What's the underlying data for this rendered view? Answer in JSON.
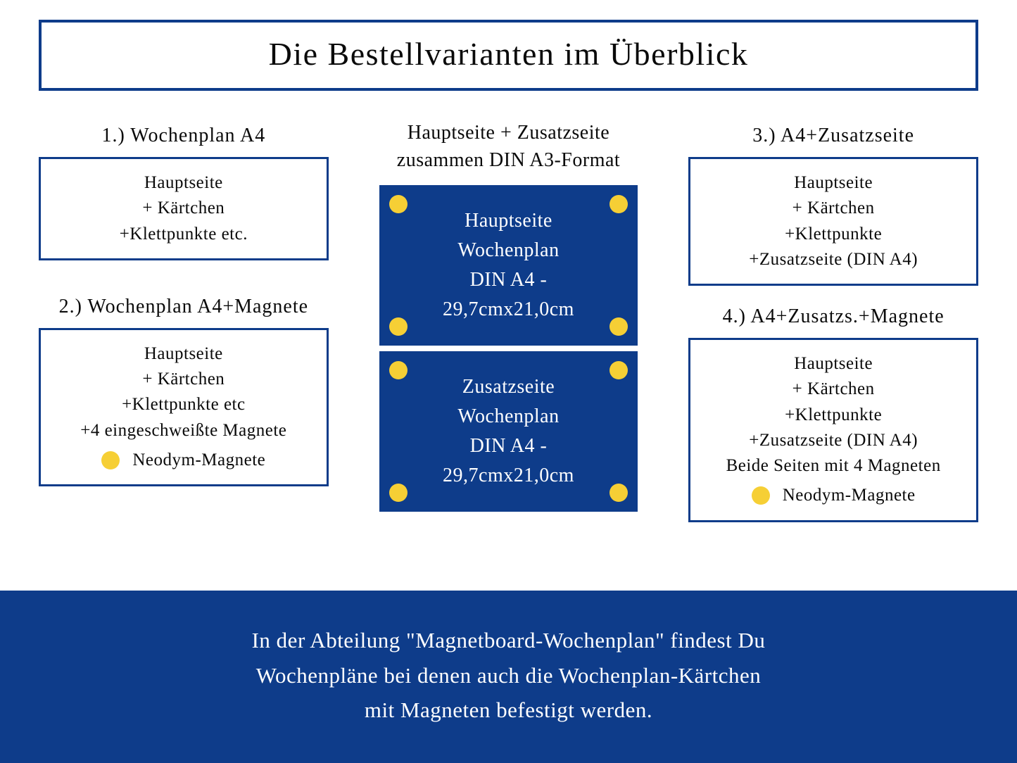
{
  "colors": {
    "primary": "#0e3c8a",
    "accent": "#f6cf35",
    "background": "#ffffff",
    "text": "#0a0a0a"
  },
  "title": "Die Bestellvarianten im Überblick",
  "left": {
    "option1": {
      "title": "1.) Wochenplan A4",
      "lines": [
        "Hauptseite",
        "+ Kärtchen",
        "+Klettpunkte etc."
      ]
    },
    "option2": {
      "title": "2.) Wochenplan A4+Magnete",
      "lines": [
        "Hauptseite",
        "+ Kärtchen",
        "+Klettpunkte etc",
        "+4 eingeschweißte Magnete"
      ],
      "magnet_label": "Neodym-Magnete"
    }
  },
  "center": {
    "title_line1": "Hauptseite + Zusatzseite",
    "title_line2": "zusammen DIN A3-Format",
    "card1": {
      "line1": "Hauptseite",
      "line2": "Wochenplan",
      "line3": "DIN A4 -",
      "line4": "29,7cmx21,0cm"
    },
    "card2": {
      "line1": "Zusatzseite",
      "line2": "Wochenplan",
      "line3": "DIN A4 -",
      "line4": "29,7cmx21,0cm"
    }
  },
  "right": {
    "option3": {
      "title": "3.)  A4+Zusatzseite",
      "lines": [
        "Hauptseite",
        "+ Kärtchen",
        "+Klettpunkte",
        "+Zusatzseite (DIN A4)"
      ]
    },
    "option4": {
      "title": "4.) A4+Zusatzs.+Magnete",
      "lines": [
        "Hauptseite",
        "+ Kärtchen",
        "+Klettpunkte",
        "+Zusatzseite (DIN A4)",
        "Beide Seiten mit 4 Magneten"
      ],
      "magnet_label": "Neodym-Magnete"
    }
  },
  "footer": {
    "line1": "In der Abteilung \"Magnetboard-Wochenplan\" findest Du",
    "line2": "Wochenpläne bei denen auch die Wochenplan-Kärtchen",
    "line3": "mit Magneten befestigt werden."
  }
}
